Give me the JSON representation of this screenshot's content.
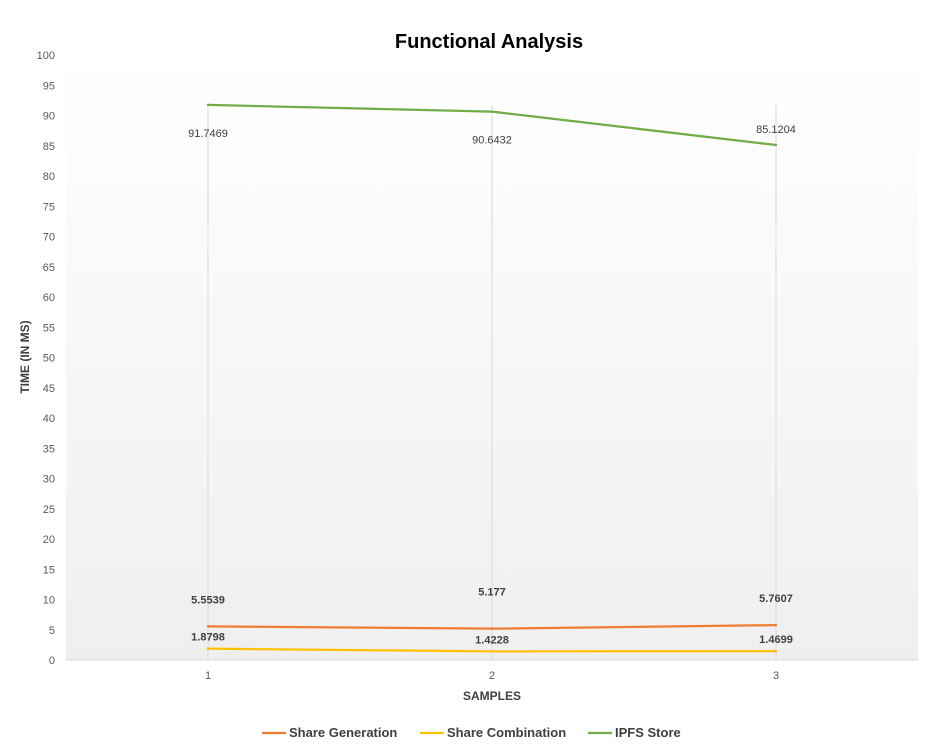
{
  "chart_data": {
    "type": "line",
    "title": "Functional Analysis",
    "xlabel": "SAMPLES",
    "ylabel": "TIME (IN MS)",
    "categories": [
      "1",
      "2",
      "3"
    ],
    "ylim": [
      0,
      100
    ],
    "ytick_step": 5,
    "grid": "vertical",
    "legend_position": "bottom",
    "series": [
      {
        "name": "Share Generation",
        "values": [
          5.5539,
          5.177,
          5.7607
        ],
        "labels": [
          "5.5539",
          "5.177",
          "5.7607"
        ],
        "color": "#ED7D31"
      },
      {
        "name": "Share Combination",
        "values": [
          1.8798,
          1.4228,
          1.4699
        ],
        "labels": [
          "1.8798",
          "1.4228",
          "1.4699"
        ],
        "color": "#FFC000"
      },
      {
        "name": "IPFS Store",
        "values": [
          91.7469,
          90.6432,
          85.1204
        ],
        "labels": [
          "91.7469",
          "90.6432",
          "85.1204"
        ],
        "color": "#70AD47"
      }
    ]
  }
}
